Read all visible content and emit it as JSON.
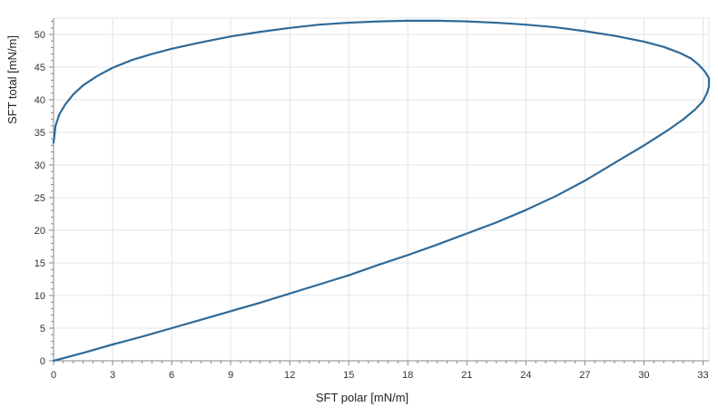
{
  "chart_data": {
    "type": "line",
    "title": "",
    "xlabel": "SFT polar [mN/m]",
    "ylabel": "SFT total [mN/m]",
    "xlim": [
      0,
      33.3
    ],
    "ylim": [
      0,
      52.5
    ],
    "xticks": [
      0,
      3,
      6,
      9,
      12,
      15,
      18,
      21,
      24,
      27,
      30,
      33
    ],
    "yticks": [
      0,
      5,
      10,
      15,
      20,
      25,
      30,
      35,
      40,
      45,
      50
    ],
    "grid": true,
    "legend": "none",
    "series": [
      {
        "color": "#2e6a99",
        "x": [
          0.0,
          0.1,
          0.3,
          0.6,
          1.0,
          1.5,
          2.2,
          3.0,
          4.0,
          5.0,
          6.0,
          7.5,
          9.0,
          10.5,
          12.0,
          13.5,
          15.0,
          16.5,
          18.0,
          19.5,
          21.0,
          22.5,
          24.0,
          25.5,
          27.0,
          28.5,
          30.0,
          31.0,
          31.8,
          32.4,
          32.8,
          33.1,
          33.3,
          33.3,
          33.2,
          33.0,
          32.6,
          32.0,
          31.2,
          30.0,
          28.5,
          27.0,
          25.5,
          24.0,
          22.5,
          21.0,
          19.5,
          18.0,
          16.5,
          15.0,
          13.5,
          12.0,
          10.5,
          9.0,
          7.5,
          6.0,
          4.5,
          3.0,
          1.5,
          0.0
        ],
        "y": [
          33.4,
          36.0,
          37.8,
          39.3,
          40.8,
          42.2,
          43.6,
          44.9,
          46.1,
          47.0,
          47.8,
          48.8,
          49.7,
          50.4,
          51.0,
          51.5,
          51.8,
          52.0,
          52.1,
          52.1,
          52.0,
          51.8,
          51.5,
          51.1,
          50.5,
          49.8,
          48.9,
          48.1,
          47.2,
          46.3,
          45.3,
          44.3,
          43.3,
          42.0,
          41.0,
          39.8,
          38.5,
          37.0,
          35.3,
          33.0,
          30.3,
          27.6,
          25.2,
          23.1,
          21.2,
          19.5,
          17.8,
          16.2,
          14.7,
          13.1,
          11.7,
          10.3,
          8.9,
          7.6,
          6.3,
          5.0,
          3.7,
          2.5,
          1.2,
          0.0
        ]
      }
    ]
  }
}
